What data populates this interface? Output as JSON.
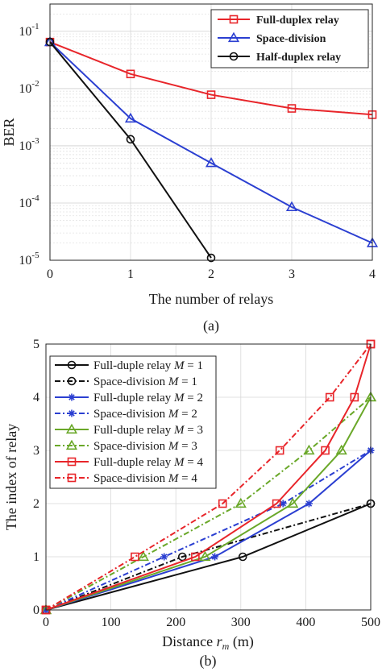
{
  "chart_data": [
    {
      "type": "line",
      "caption": "(a)",
      "xlabel": "The number of relays",
      "ylabel": "BER",
      "yscale": "log",
      "xlim": [
        0,
        4
      ],
      "ylim": [
        1e-05,
        0.3
      ],
      "x_ticks": [
        "0",
        "1",
        "2",
        "3",
        "4"
      ],
      "y_ticks": [
        {
          "base": "10",
          "exp": "-5"
        },
        {
          "base": "10",
          "exp": "-4"
        },
        {
          "base": "10",
          "exp": "-3"
        },
        {
          "base": "10",
          "exp": "-2"
        },
        {
          "base": "10",
          "exp": "-1"
        }
      ],
      "grid": true,
      "legend_position": "top-right",
      "series": [
        {
          "name": "Full-duplex relay",
          "color": "#e8252a",
          "marker": "square",
          "x": [
            0,
            1,
            2,
            3,
            4
          ],
          "y": [
            0.065,
            0.018,
            0.0078,
            0.0045,
            0.0035
          ]
        },
        {
          "name": "Space-division",
          "color": "#2b3fd1",
          "marker": "triangle",
          "x": [
            0,
            1,
            2,
            3,
            4
          ],
          "y": [
            0.065,
            0.003,
            0.0005,
            8.5e-05,
            2e-05
          ]
        },
        {
          "name": "Half-duplex relay",
          "color": "#111111",
          "marker": "circle",
          "x": [
            0,
            1,
            2
          ],
          "y": [
            0.065,
            0.0013,
            1.1e-05
          ]
        }
      ]
    },
    {
      "type": "line",
      "caption": "(b)",
      "xlabel_prefix": "Distance ",
      "xlabel_var": "r",
      "xlabel_sub": "m",
      "xlabel_suffix": " (m)",
      "ylabel": "The index of relay",
      "xlim": [
        0,
        500
      ],
      "ylim": [
        0,
        5
      ],
      "x_ticks": [
        "0",
        "100",
        "200",
        "300",
        "400",
        "500"
      ],
      "y_ticks": [
        "0",
        "1",
        "2",
        "3",
        "4",
        "5"
      ],
      "grid": true,
      "legend_position": "top-left",
      "series": [
        {
          "name": "Full-duple relay M = 1",
          "label_text": "Full-duple relay ",
          "label_var": "M",
          "label_eq": " = 1",
          "color": "#111111",
          "marker": "circle",
          "dash": "solid",
          "x": [
            0,
            303,
            500
          ],
          "y": [
            0,
            1,
            2
          ]
        },
        {
          "name": "Space-division M = 1",
          "label_text": "Space-division ",
          "label_var": "M",
          "label_eq": " = 1",
          "color": "#111111",
          "marker": "circle",
          "dash": "dashdot",
          "x": [
            0,
            210,
            500
          ],
          "y": [
            0,
            1,
            2
          ]
        },
        {
          "name": "Full-duple relay M = 2",
          "label_text": "Full-duple relay ",
          "label_var": "M",
          "label_eq": " = 2",
          "color": "#2b3fd1",
          "marker": "star",
          "dash": "solid",
          "x": [
            0,
            260,
            405,
            500
          ],
          "y": [
            0,
            1,
            2,
            3
          ]
        },
        {
          "name": "Space-division M = 2",
          "label_text": "Space-division ",
          "label_var": "M",
          "label_eq": " = 2",
          "color": "#2b3fd1",
          "marker": "star",
          "dash": "dashdot",
          "x": [
            0,
            182,
            365,
            500
          ],
          "y": [
            0,
            1,
            2,
            3
          ]
        },
        {
          "name": "Full-duple relay M = 3",
          "label_text": "Full-duple relay ",
          "label_var": "M",
          "label_eq": " = 3",
          "color": "#6aa829",
          "marker": "triangle",
          "dash": "solid",
          "x": [
            0,
            245,
            380,
            455,
            500
          ],
          "y": [
            0,
            1,
            2,
            3,
            4
          ]
        },
        {
          "name": "Space-division M = 3",
          "label_text": "Space-division ",
          "label_var": "M",
          "label_eq": " = 3",
          "color": "#6aa829",
          "marker": "triangle",
          "dash": "dashdot",
          "x": [
            0,
            150,
            300,
            405,
            500
          ],
          "y": [
            0,
            1,
            2,
            3,
            4
          ]
        },
        {
          "name": "Full-duple relay M = 4",
          "label_text": "Full-duple relay ",
          "label_var": "M",
          "label_eq": " = 4",
          "color": "#e8252a",
          "marker": "square",
          "dash": "solid",
          "x": [
            0,
            230,
            355,
            430,
            475,
            500
          ],
          "y": [
            0,
            1,
            2,
            3,
            4,
            5
          ]
        },
        {
          "name": "Space-division M = 4",
          "label_text": "Space-division ",
          "label_var": "M",
          "label_eq": " = 4",
          "color": "#e8252a",
          "marker": "square",
          "dash": "dashdot",
          "x": [
            0,
            137,
            272,
            360,
            437,
            500
          ],
          "y": [
            0,
            1,
            2,
            3,
            4,
            5
          ]
        }
      ]
    }
  ]
}
